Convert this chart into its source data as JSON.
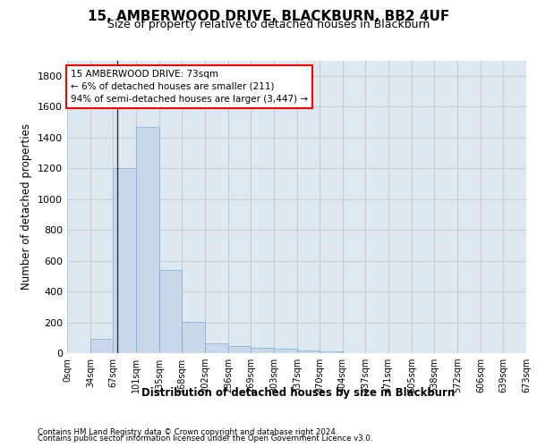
{
  "title": "15, AMBERWOOD DRIVE, BLACKBURN, BB2 4UF",
  "subtitle": "Size of property relative to detached houses in Blackburn",
  "xlabel": "Distribution of detached houses by size in Blackburn",
  "ylabel": "Number of detached properties",
  "bar_values": [
    0,
    90,
    1200,
    1470,
    540,
    205,
    65,
    45,
    35,
    28,
    15,
    13,
    0,
    0,
    0,
    0,
    0,
    0,
    0,
    0
  ],
  "bin_edges": [
    0,
    34,
    67,
    101,
    135,
    168,
    202,
    236,
    269,
    303,
    337,
    370,
    404,
    437,
    471,
    505,
    538,
    572,
    606,
    639,
    673
  ],
  "tick_labels": [
    "0sqm",
    "34sqm",
    "67sqm",
    "101sqm",
    "135sqm",
    "168sqm",
    "202sqm",
    "236sqm",
    "269sqm",
    "303sqm",
    "337sqm",
    "370sqm",
    "404sqm",
    "437sqm",
    "471sqm",
    "505sqm",
    "538sqm",
    "572sqm",
    "606sqm",
    "639sqm",
    "673sqm"
  ],
  "bar_color": "#c8d8ea",
  "bar_edge_color": "#7faed4",
  "property_line_x": 73,
  "annotation_text": "15 AMBERWOOD DRIVE: 73sqm\n← 6% of detached houses are smaller (211)\n94% of semi-detached houses are larger (3,447) →",
  "ylim": [
    0,
    1900
  ],
  "yticks": [
    0,
    200,
    400,
    600,
    800,
    1000,
    1200,
    1400,
    1600,
    1800
  ],
  "grid_color": "#cccccc",
  "background_color": "#dde8f0",
  "footer_line1": "Contains HM Land Registry data © Crown copyright and database right 2024.",
  "footer_line2": "Contains public sector information licensed under the Open Government Licence v3.0."
}
